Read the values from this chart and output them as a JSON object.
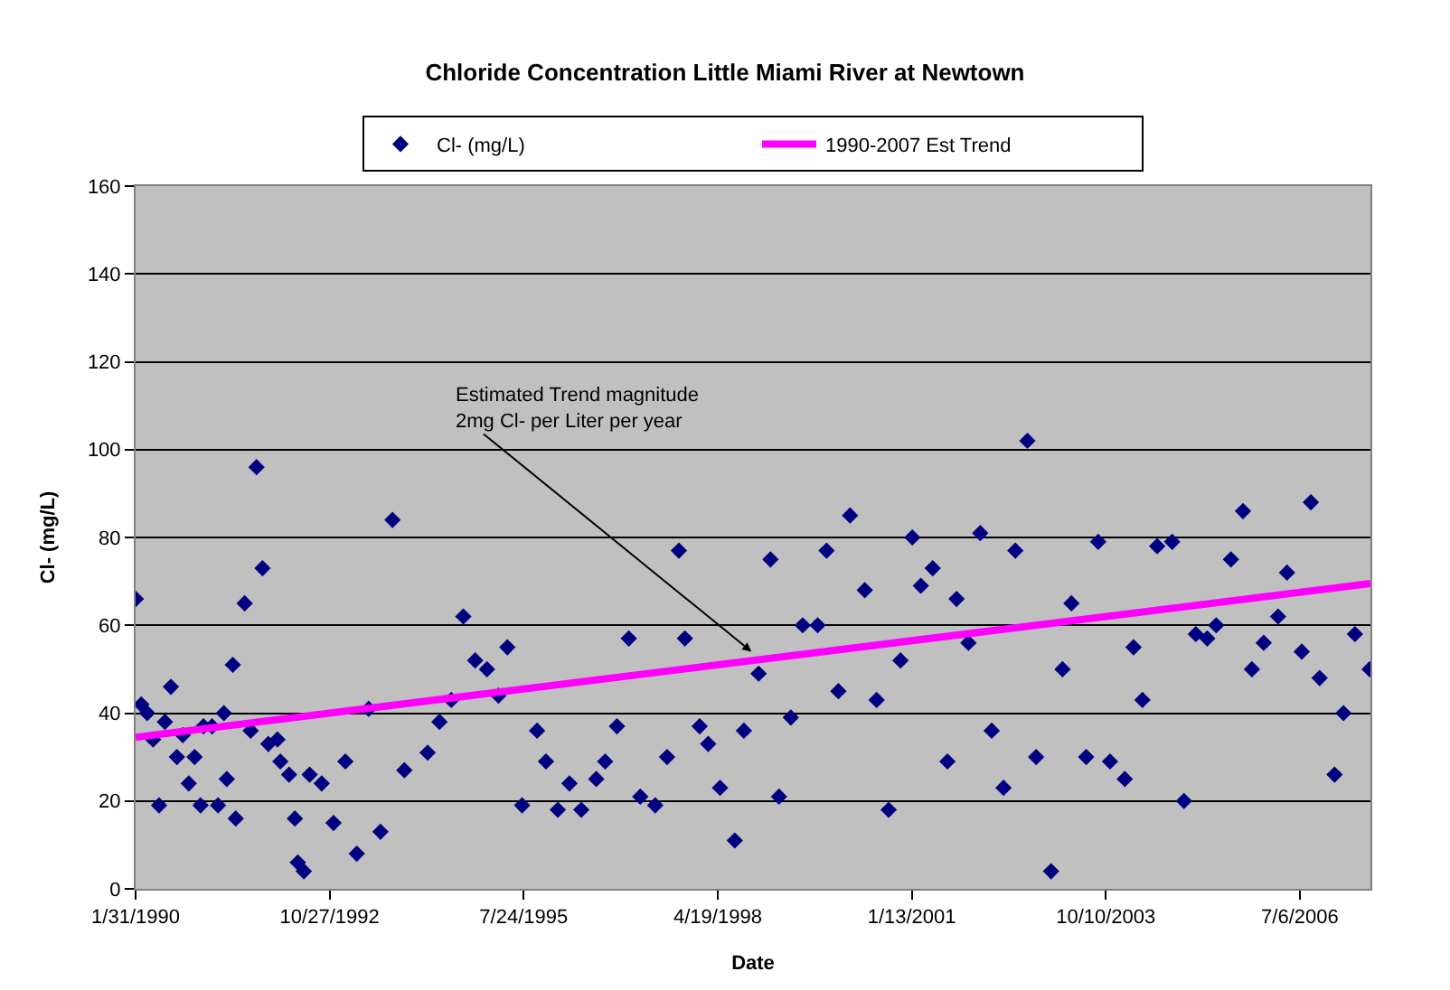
{
  "chart_data": {
    "type": "scatter",
    "title": "Chloride Concentration Little Miami River at Newtown",
    "xlabel": "Date",
    "ylabel": "Cl- (mg/L)",
    "xlim": [
      "1990-01-31",
      "2007-07-05"
    ],
    "xticks": [
      {
        "value": "1990-01-31",
        "label": "1/31/1990"
      },
      {
        "value": "1992-10-27",
        "label": "10/27/1992"
      },
      {
        "value": "1995-07-24",
        "label": "7/24/1995"
      },
      {
        "value": "1998-04-19",
        "label": "4/19/1998"
      },
      {
        "value": "2001-01-13",
        "label": "1/13/2001"
      },
      {
        "value": "2003-10-10",
        "label": "10/10/2003"
      },
      {
        "value": "2006-07-06",
        "label": "7/6/2006"
      }
    ],
    "ylim": [
      0,
      160
    ],
    "yticks": [
      0,
      20,
      40,
      60,
      80,
      100,
      120,
      140,
      160
    ],
    "grid": "y",
    "legend": "top",
    "marker": "diamond",
    "series": [
      {
        "name": "Cl- (mg/L)",
        "color": "#000080",
        "x": [
          "1990-02-01",
          "1990-03-01",
          "1990-04-01",
          "1990-05-01",
          "1990-06-01",
          "1990-07-01",
          "1990-08-01",
          "1990-09-01",
          "1990-10-01",
          "1990-11-01",
          "1990-12-01",
          "1991-01-01",
          "1991-01-16",
          "1991-03-01",
          "1991-04-01",
          "1991-05-01",
          "1991-05-16",
          "1991-06-16",
          "1991-07-01",
          "1991-08-16",
          "1991-09-16",
          "1991-10-16",
          "1991-11-16",
          "1991-12-16",
          "1992-02-01",
          "1992-02-16",
          "1992-04-01",
          "1992-05-01",
          "1992-05-16",
          "1992-06-16",
          "1992-07-16",
          "1992-09-16",
          "1992-11-16",
          "1993-01-16",
          "1993-03-16",
          "1993-05-16",
          "1993-07-16",
          "1993-09-16",
          "1993-11-16",
          "1994-03-16",
          "1994-05-16",
          "1994-07-16",
          "1994-09-16",
          "1994-11-16",
          "1995-01-16",
          "1995-03-16",
          "1995-05-01",
          "1995-07-16",
          "1995-10-01",
          "1995-11-16",
          "1996-01-16",
          "1996-03-16",
          "1996-05-16",
          "1996-08-01",
          "1996-09-16",
          "1996-11-16",
          "1997-01-16",
          "1997-03-16",
          "1997-06-01",
          "1997-08-01",
          "1997-10-01",
          "1997-11-01",
          "1998-01-16",
          "1998-03-01",
          "1998-05-01",
          "1998-07-16",
          "1998-09-01",
          "1998-11-16",
          "1999-01-16",
          "1999-03-01",
          "1999-05-01",
          "1999-07-01",
          "1999-09-16",
          "1999-11-01",
          "2000-01-01",
          "2000-03-01",
          "2000-05-16",
          "2000-07-16",
          "2000-09-16",
          "2000-11-16",
          "2001-01-16",
          "2001-03-01",
          "2001-05-01",
          "2001-07-16",
          "2001-09-01",
          "2001-11-01",
          "2002-01-01",
          "2002-03-01",
          "2002-05-01",
          "2002-07-01",
          "2002-09-01",
          "2002-10-16",
          "2003-01-01",
          "2003-03-01",
          "2003-04-16",
          "2003-07-01",
          "2003-09-01",
          "2003-11-01",
          "2004-01-16",
          "2004-03-01",
          "2004-04-16",
          "2004-07-01",
          "2004-09-16",
          "2004-11-16",
          "2005-01-16",
          "2005-03-16",
          "2005-05-01",
          "2005-07-16",
          "2005-09-16",
          "2005-11-01",
          "2006-01-01",
          "2006-03-16",
          "2006-05-01",
          "2006-07-16",
          "2006-09-01",
          "2006-10-16",
          "2007-01-01",
          "2007-02-16",
          "2007-04-16",
          "2007-07-01"
        ],
        "values": [
          66,
          42,
          40,
          34,
          19,
          38,
          46,
          30,
          35,
          24,
          30,
          19,
          37,
          37,
          19,
          40,
          25,
          51,
          16,
          65,
          36,
          96,
          73,
          33,
          34,
          29,
          26,
          16,
          6,
          4,
          26,
          24,
          15,
          29,
          8,
          41,
          13,
          84,
          27,
          31,
          38,
          43,
          62,
          52,
          50,
          44,
          55,
          19,
          36,
          29,
          18,
          24,
          18,
          25,
          29,
          37,
          57,
          21,
          19,
          30,
          77,
          57,
          37,
          33,
          23,
          11,
          36,
          49,
          75,
          21,
          39,
          60,
          60,
          77,
          45,
          85,
          68,
          43,
          18,
          52,
          80,
          69,
          73,
          29,
          66,
          56,
          81,
          36,
          23,
          77,
          102,
          30,
          4,
          50,
          65,
          30,
          79,
          29,
          25,
          55,
          43,
          78,
          79,
          20,
          58,
          57,
          60,
          75,
          86,
          50,
          56,
          62,
          72,
          54,
          88,
          48,
          26,
          40,
          58,
          50
        ]
      },
      {
        "name": "1990-2007 Est Trend",
        "type": "line",
        "color": "#ff00ff",
        "marker": "none",
        "line_style": "solid",
        "x": [
          "1990-01-31",
          "2007-07-05"
        ],
        "values": [
          34.5,
          69.5
        ]
      }
    ],
    "annotations": [
      {
        "text": "Estimated Trend magnitude\n2mg Cl- per Liter per year",
        "x": "1998-10-10",
        "y": 54
      }
    ]
  }
}
